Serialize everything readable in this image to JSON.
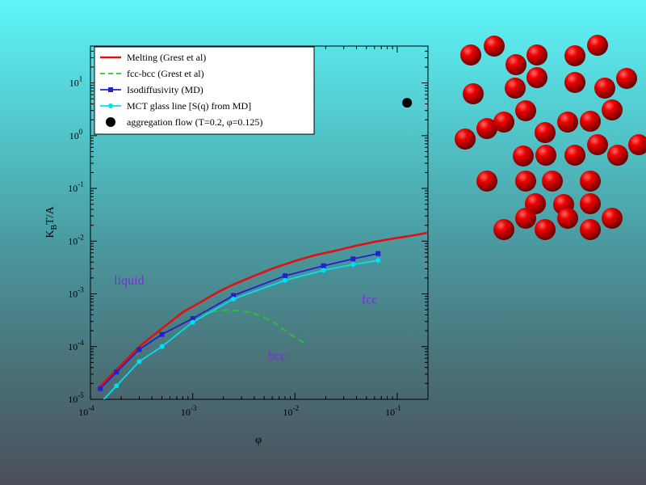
{
  "chart_data": {
    "type": "line",
    "xlabel": "φ",
    "ylabel_main": "K",
    "ylabel_sub": "B",
    "ylabel_rest": "T/A",
    "xscale": "log",
    "yscale": "log",
    "xlim": [
      0.0001,
      0.2
    ],
    "ylim": [
      1e-05,
      50
    ],
    "x_ticks": [
      {
        "value": 0.0001,
        "base": "10",
        "exp": "-4"
      },
      {
        "value": 0.001,
        "base": "10",
        "exp": "-3"
      },
      {
        "value": 0.01,
        "base": "10",
        "exp": "-2"
      },
      {
        "value": 0.1,
        "base": "10",
        "exp": "-1"
      }
    ],
    "y_ticks": [
      {
        "value": 1e-05,
        "base": "10",
        "exp": "-5"
      },
      {
        "value": 0.0001,
        "base": "10",
        "exp": "-4"
      },
      {
        "value": 0.001,
        "base": "10",
        "exp": "-3"
      },
      {
        "value": 0.01,
        "base": "10",
        "exp": "-2"
      },
      {
        "value": 0.1,
        "base": "10",
        "exp": "-1"
      },
      {
        "value": 1,
        "base": "10",
        "exp": "0"
      },
      {
        "value": 10,
        "base": "10",
        "exp": "1"
      }
    ],
    "series": [
      {
        "name": "Melting  (Grest et al)",
        "color": "#e01010",
        "style": "solid",
        "marker": "none",
        "x": [
          0.000125,
          0.0002,
          0.0003,
          0.0005,
          0.0008,
          0.0012,
          0.0018,
          0.0025,
          0.004,
          0.006,
          0.01,
          0.015,
          0.025,
          0.04,
          0.06,
          0.1,
          0.15,
          0.2
        ],
        "y": [
          1.8e-05,
          4.5e-05,
          0.0001,
          0.00022,
          0.00045,
          0.0007,
          0.0011,
          0.0015,
          0.0022,
          0.003,
          0.0042,
          0.0053,
          0.0066,
          0.0082,
          0.0097,
          0.0115,
          0.013,
          0.0145
        ]
      },
      {
        "name": "fcc-bcc (Grest et al)",
        "color": "#22cc22",
        "style": "dashed",
        "marker": "none",
        "x": [
          0.0008,
          0.001,
          0.0013,
          0.0017,
          0.0022,
          0.0028,
          0.0035,
          0.0045,
          0.006,
          0.008,
          0.01,
          0.013
        ],
        "y": [
          0.00027,
          0.00035,
          0.00042,
          0.00047,
          0.00049,
          0.00048,
          0.00045,
          0.00039,
          0.0003,
          0.0002,
          0.00015,
          0.00011
        ]
      },
      {
        "name": "Isodiffusivity (MD)",
        "color": "#2222cc",
        "style": "solid",
        "marker": "square",
        "x": [
          0.000125,
          0.00018,
          0.0003,
          0.0005,
          0.001,
          0.0025,
          0.008,
          0.019,
          0.037,
          0.065
        ],
        "y": [
          1.6e-05,
          3.3e-05,
          8.8e-05,
          0.00017,
          0.00034,
          0.00093,
          0.0022,
          0.0034,
          0.0046,
          0.0058
        ]
      },
      {
        "name": "MCT glass line [S(q) from MD]",
        "color": "#00e0f0",
        "style": "solid",
        "marker": "circle",
        "x": [
          0.000125,
          0.00018,
          0.0003,
          0.0005,
          0.001,
          0.0025,
          0.008,
          0.019,
          0.037,
          0.065
        ],
        "y": [
          8.5e-06,
          1.8e-05,
          5.2e-05,
          0.0001,
          0.00029,
          0.0008,
          0.0018,
          0.0028,
          0.0036,
          0.0043
        ]
      },
      {
        "name": "aggregation flow (T=0.2, φ=0.125)",
        "color": "#000000",
        "style": "none",
        "marker": "big-circle",
        "x": [
          0.125
        ],
        "y": [
          4.2
        ]
      }
    ],
    "annotations": [
      {
        "text": "liquid",
        "x": 0.00017,
        "y": 0.0015
      },
      {
        "text": "fcc",
        "x": 0.045,
        "y": 0.00065
      },
      {
        "text": "bcc",
        "x": 0.0055,
        "y": 5.5e-05
      }
    ],
    "legend_position": "top-left",
    "grid": false
  },
  "illustration": {
    "name": "aggregate-spheres",
    "color": "#d90000"
  }
}
